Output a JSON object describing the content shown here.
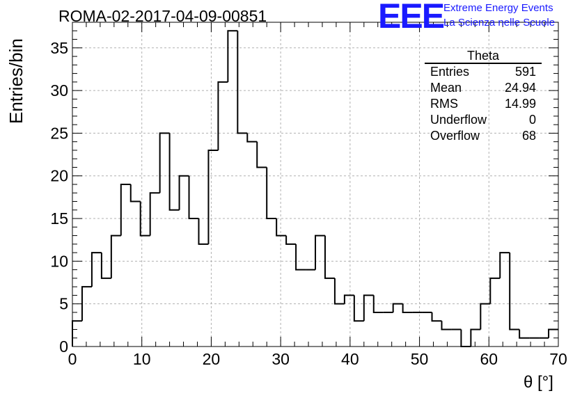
{
  "header": {
    "title": "ROMA-02-2017-04-09-00851",
    "logo_text": "EEE",
    "logo_line1": "Extreme Energy Events",
    "logo_line2": "La Scienza nelle Scuole",
    "logo_color": "#1a1aff"
  },
  "stats_box": {
    "title": "Theta",
    "rows": [
      {
        "label": "Entries",
        "value": "591"
      },
      {
        "label": "Mean",
        "value": "24.94"
      },
      {
        "label": "RMS",
        "value": "14.99"
      },
      {
        "label": "Underflow",
        "value": "0"
      },
      {
        "label": "Overflow",
        "value": "68"
      }
    ]
  },
  "chart_data": {
    "type": "bar",
    "style": "step-histogram",
    "title": "ROMA-02-2017-04-09-00851",
    "xlabel": "θ [°]",
    "ylabel": "Entries/bin",
    "xlim": [
      0,
      70
    ],
    "ylim": [
      0,
      38
    ],
    "grid": true,
    "bin_width": 1.4,
    "x_ticks": [
      0,
      10,
      20,
      30,
      40,
      50,
      60,
      70
    ],
    "y_ticks": [
      0,
      5,
      10,
      15,
      20,
      25,
      30,
      35
    ],
    "values": [
      3,
      7,
      11,
      8,
      13,
      19,
      17,
      13,
      18,
      25,
      16,
      20,
      15,
      12,
      23,
      31,
      37,
      25,
      24,
      21,
      15,
      13,
      12,
      9,
      9,
      13,
      8,
      5,
      6,
      3,
      6,
      4,
      4,
      5,
      4,
      4,
      4,
      3,
      2,
      2,
      0,
      2,
      5,
      8,
      11,
      2,
      1,
      1,
      1,
      2
    ],
    "line_color": "#000000"
  }
}
